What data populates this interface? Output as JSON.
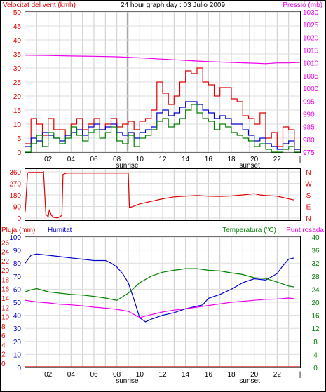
{
  "chart_data": [
    {
      "type": "line",
      "title": "24 hour graph day : 03 Julio 2009",
      "left_label": "Velocitat del vent (kmh)",
      "right_label": "Pressió (mb)",
      "x_ticks": [
        "02",
        "04",
        "06",
        "08",
        "10",
        "12",
        "14",
        "16",
        "18",
        "20",
        "22",
        "|"
      ],
      "sunrise_label": "sunrise",
      "sunset_label": "sunset",
      "x_range": [
        0,
        24
      ],
      "sunrise": 8.9,
      "sunset": 19.6,
      "ylim": [
        0,
        50
      ],
      "yticks": [
        0,
        5,
        10,
        15,
        20,
        25,
        30,
        35,
        40,
        45,
        50
      ],
      "y2lim": [
        975,
        1030
      ],
      "y2ticks": [
        975,
        980,
        985,
        990,
        995,
        1000,
        1005,
        1010,
        1015,
        1020,
        1025,
        1030
      ],
      "series": [
        {
          "color": "#e00000",
          "axis": "left",
          "x": [
            0,
            0.5,
            1,
            1.5,
            2,
            2.5,
            3,
            3.5,
            4,
            4.5,
            5,
            5.5,
            6,
            6.5,
            7,
            7.5,
            8,
            8.5,
            9,
            9.5,
            10,
            10.5,
            11,
            11.5,
            12,
            12.5,
            13,
            13.5,
            14,
            14.5,
            15,
            15.5,
            16,
            16.5,
            17,
            17.5,
            18,
            18.5,
            19,
            19.5,
            20,
            20.5,
            21,
            21.5,
            22,
            22.5,
            23,
            23.5
          ],
          "values": [
            3,
            12,
            10,
            6,
            12,
            8,
            8,
            6,
            10,
            12,
            8,
            10,
            12,
            8,
            10,
            12,
            9,
            10,
            11,
            8,
            11,
            12,
            15,
            25,
            21,
            17,
            20,
            25,
            29,
            28,
            30,
            25,
            24,
            20,
            23,
            23,
            19,
            18,
            13,
            12,
            10,
            14,
            5,
            7,
            2,
            9,
            8,
            1
          ]
        },
        {
          "color": "#0000cc",
          "axis": "left",
          "x": [
            0,
            0.5,
            1,
            1.5,
            2,
            2.5,
            3,
            3.5,
            4,
            4.5,
            5,
            5.5,
            6,
            6.5,
            7,
            7.5,
            8,
            8.5,
            9,
            9.5,
            10,
            10.5,
            11,
            11.5,
            12,
            12.5,
            13,
            13.5,
            14,
            14.5,
            15,
            15.5,
            16,
            16.5,
            17,
            17.5,
            18,
            18.5,
            19,
            19.5,
            20,
            20.5,
            21,
            21.5,
            22,
            22.5,
            23,
            23.5
          ],
          "values": [
            2,
            5,
            4,
            7,
            6,
            5,
            4,
            6,
            7,
            8,
            6,
            9,
            10,
            8,
            9,
            10,
            7,
            6,
            7,
            5,
            7,
            8,
            9,
            14,
            15,
            13,
            14,
            16,
            18,
            18,
            17,
            15,
            14,
            12,
            13,
            12,
            10,
            10,
            8,
            6,
            4,
            5,
            3,
            2,
            1,
            3,
            4,
            1
          ]
        },
        {
          "color": "#008000",
          "axis": "left",
          "x": [
            0,
            0.5,
            1,
            1.5,
            2,
            2.5,
            3,
            3.5,
            4,
            4.5,
            5,
            5.5,
            6,
            6.5,
            7,
            7.5,
            8,
            8.5,
            9,
            9.5,
            10,
            10.5,
            11,
            11.5,
            12,
            12.5,
            13,
            13.5,
            14,
            14.5,
            15,
            15.5,
            16,
            16.5,
            17,
            17.5,
            18,
            18.5,
            19,
            19.5,
            20,
            20.5,
            21,
            21.5,
            22,
            22.5,
            23,
            23.5
          ],
          "values": [
            0,
            3,
            6,
            2,
            7,
            5,
            3,
            5,
            9,
            6,
            4,
            7,
            8,
            5,
            7,
            9,
            4,
            3,
            6,
            2,
            5,
            6,
            8,
            11,
            12,
            9,
            10,
            12,
            15,
            17,
            14,
            12,
            11,
            8,
            10,
            9,
            7,
            6,
            5,
            4,
            2,
            3,
            1,
            0,
            0,
            1,
            2,
            0
          ]
        },
        {
          "color": "#ee00ee",
          "axis": "right",
          "x": [
            0,
            2,
            4,
            6,
            8,
            10,
            12,
            14,
            16,
            18,
            20,
            21,
            22,
            23,
            24
          ],
          "values": [
            1013,
            1012.9,
            1012.7,
            1012.6,
            1012.4,
            1012,
            1011.5,
            1011,
            1010.5,
            1010.2,
            1009.9,
            1009.7,
            1010,
            1010,
            1010.2
          ]
        }
      ]
    },
    {
      "type": "line",
      "left_label": "",
      "right_labels": [
        "N",
        "W",
        "S",
        "E",
        "N"
      ],
      "x_range": [
        0,
        24
      ],
      "ylim": [
        0,
        360
      ],
      "yticks": [
        0,
        90,
        180,
        270,
        360
      ],
      "series": [
        {
          "color": "#e00000",
          "x": [
            0,
            0.2,
            0.3,
            1.5,
            1.6,
            1.8,
            2,
            2.1,
            2.3,
            2.5,
            2.6,
            2.8,
            3,
            3.2,
            3.3,
            3.6,
            9,
            9.1,
            10,
            11,
            12,
            13,
            14,
            15,
            16,
            17,
            18,
            19,
            20,
            20.5,
            21,
            22,
            23,
            23.5
          ],
          "values": [
            50,
            350,
            355,
            355,
            360,
            30,
            10,
            60,
            20,
            5,
            5,
            0,
            10,
            20,
            340,
            350,
            350,
            80,
            110,
            130,
            150,
            165,
            170,
            175,
            170,
            168,
            172,
            180,
            190,
            180,
            175,
            170,
            150,
            140
          ]
        }
      ]
    },
    {
      "type": "line",
      "left_label": "Pluja (mm)",
      "left_label2": "Humitat",
      "right_label": "Temperatura (°C)",
      "right_label2": "Punt rosada",
      "x_range": [
        0,
        24
      ],
      "ylim": [
        0,
        100
      ],
      "yticks": [
        0,
        10,
        20,
        30,
        40,
        50,
        60,
        70,
        80,
        90,
        100
      ],
      "yticks_rain": [
        0,
        2,
        4,
        6,
        8,
        10,
        12,
        14,
        16,
        18,
        20,
        22,
        24,
        26
      ],
      "y2lim": [
        0,
        40
      ],
      "y2ticks": [
        0,
        4,
        8,
        12,
        16,
        20,
        24,
        28,
        32,
        36,
        40
      ],
      "series": [
        {
          "color": "#0000cc",
          "axis": "left",
          "x": [
            0,
            0.5,
            1,
            2,
            3,
            4,
            5,
            6,
            7,
            7.5,
            8,
            8.5,
            9,
            9.5,
            10,
            10.5,
            11,
            12,
            13,
            14,
            15,
            15.5,
            16,
            17,
            18,
            19,
            20,
            21,
            22,
            22.5,
            23,
            23.5
          ],
          "values": [
            80,
            86,
            87,
            86,
            85,
            84,
            83,
            82,
            82,
            80,
            77,
            72,
            65,
            52,
            38,
            35,
            37,
            40,
            42,
            45,
            47,
            48,
            53,
            56,
            60,
            65,
            68,
            67,
            72,
            78,
            83,
            84
          ]
        },
        {
          "color": "#008000",
          "axis": "right",
          "x": [
            0,
            0.5,
            1,
            2,
            3,
            4,
            5,
            6,
            7,
            8,
            9,
            10,
            11,
            12,
            13,
            14,
            15,
            16,
            17,
            18,
            19,
            20,
            21,
            22,
            23,
            23.5
          ],
          "values": [
            23.2,
            23.8,
            24.2,
            23.2,
            22.8,
            22.4,
            22.2,
            21.8,
            21.3,
            20.6,
            22.8,
            26,
            28,
            29.2,
            29.8,
            30.3,
            30.3,
            29.8,
            29.6,
            29,
            28.5,
            27.5,
            27.3,
            26.2,
            25,
            24.7
          ]
        },
        {
          "color": "#ee00ee",
          "axis": "right",
          "x": [
            0,
            1,
            2,
            3,
            4,
            5,
            6,
            7,
            8,
            9,
            10,
            11,
            12,
            13,
            14,
            15,
            16,
            17,
            18,
            19,
            20,
            21,
            22,
            23,
            23.5
          ],
          "values": [
            20.6,
            20.1,
            19.8,
            19.4,
            19.2,
            18.9,
            18.5,
            18.2,
            17.8,
            17.2,
            15.3,
            16.2,
            17,
            17.6,
            18,
            18.5,
            19,
            19.5,
            20,
            20.3,
            20.6,
            20.9,
            21,
            21.3,
            21.1
          ]
        },
        {
          "color": "#e00000",
          "axis": "rain",
          "x": [
            0,
            24
          ],
          "values": [
            0,
            0
          ]
        }
      ]
    }
  ]
}
